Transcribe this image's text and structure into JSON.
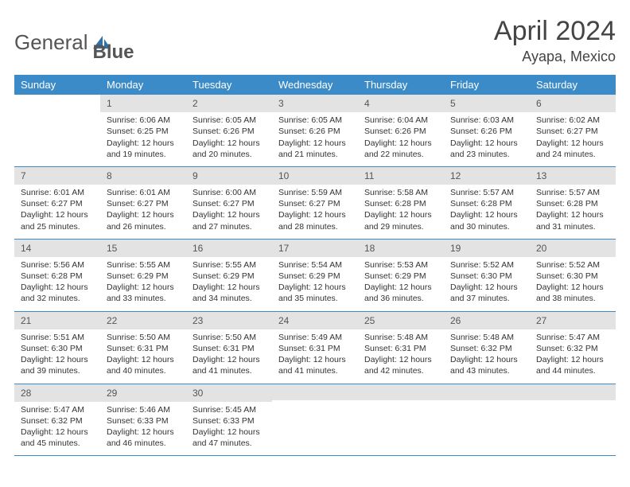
{
  "logo": {
    "part1": "General",
    "part2": "Blue"
  },
  "title": "April 2024",
  "location": "Ayapa, Mexico",
  "header_color": "#3b8bc8",
  "daynum_bg": "#e3e3e3",
  "border_color": "#3b8bc8",
  "weekdays": [
    "Sunday",
    "Monday",
    "Tuesday",
    "Wednesday",
    "Thursday",
    "Friday",
    "Saturday"
  ],
  "weeks": [
    [
      null,
      {
        "n": "1",
        "sr": "Sunrise: 6:06 AM",
        "ss": "Sunset: 6:25 PM",
        "d1": "Daylight: 12 hours",
        "d2": "and 19 minutes."
      },
      {
        "n": "2",
        "sr": "Sunrise: 6:05 AM",
        "ss": "Sunset: 6:26 PM",
        "d1": "Daylight: 12 hours",
        "d2": "and 20 minutes."
      },
      {
        "n": "3",
        "sr": "Sunrise: 6:05 AM",
        "ss": "Sunset: 6:26 PM",
        "d1": "Daylight: 12 hours",
        "d2": "and 21 minutes."
      },
      {
        "n": "4",
        "sr": "Sunrise: 6:04 AM",
        "ss": "Sunset: 6:26 PM",
        "d1": "Daylight: 12 hours",
        "d2": "and 22 minutes."
      },
      {
        "n": "5",
        "sr": "Sunrise: 6:03 AM",
        "ss": "Sunset: 6:26 PM",
        "d1": "Daylight: 12 hours",
        "d2": "and 23 minutes."
      },
      {
        "n": "6",
        "sr": "Sunrise: 6:02 AM",
        "ss": "Sunset: 6:27 PM",
        "d1": "Daylight: 12 hours",
        "d2": "and 24 minutes."
      }
    ],
    [
      {
        "n": "7",
        "sr": "Sunrise: 6:01 AM",
        "ss": "Sunset: 6:27 PM",
        "d1": "Daylight: 12 hours",
        "d2": "and 25 minutes."
      },
      {
        "n": "8",
        "sr": "Sunrise: 6:01 AM",
        "ss": "Sunset: 6:27 PM",
        "d1": "Daylight: 12 hours",
        "d2": "and 26 minutes."
      },
      {
        "n": "9",
        "sr": "Sunrise: 6:00 AM",
        "ss": "Sunset: 6:27 PM",
        "d1": "Daylight: 12 hours",
        "d2": "and 27 minutes."
      },
      {
        "n": "10",
        "sr": "Sunrise: 5:59 AM",
        "ss": "Sunset: 6:27 PM",
        "d1": "Daylight: 12 hours",
        "d2": "and 28 minutes."
      },
      {
        "n": "11",
        "sr": "Sunrise: 5:58 AM",
        "ss": "Sunset: 6:28 PM",
        "d1": "Daylight: 12 hours",
        "d2": "and 29 minutes."
      },
      {
        "n": "12",
        "sr": "Sunrise: 5:57 AM",
        "ss": "Sunset: 6:28 PM",
        "d1": "Daylight: 12 hours",
        "d2": "and 30 minutes."
      },
      {
        "n": "13",
        "sr": "Sunrise: 5:57 AM",
        "ss": "Sunset: 6:28 PM",
        "d1": "Daylight: 12 hours",
        "d2": "and 31 minutes."
      }
    ],
    [
      {
        "n": "14",
        "sr": "Sunrise: 5:56 AM",
        "ss": "Sunset: 6:28 PM",
        "d1": "Daylight: 12 hours",
        "d2": "and 32 minutes."
      },
      {
        "n": "15",
        "sr": "Sunrise: 5:55 AM",
        "ss": "Sunset: 6:29 PM",
        "d1": "Daylight: 12 hours",
        "d2": "and 33 minutes."
      },
      {
        "n": "16",
        "sr": "Sunrise: 5:55 AM",
        "ss": "Sunset: 6:29 PM",
        "d1": "Daylight: 12 hours",
        "d2": "and 34 minutes."
      },
      {
        "n": "17",
        "sr": "Sunrise: 5:54 AM",
        "ss": "Sunset: 6:29 PM",
        "d1": "Daylight: 12 hours",
        "d2": "and 35 minutes."
      },
      {
        "n": "18",
        "sr": "Sunrise: 5:53 AM",
        "ss": "Sunset: 6:29 PM",
        "d1": "Daylight: 12 hours",
        "d2": "and 36 minutes."
      },
      {
        "n": "19",
        "sr": "Sunrise: 5:52 AM",
        "ss": "Sunset: 6:30 PM",
        "d1": "Daylight: 12 hours",
        "d2": "and 37 minutes."
      },
      {
        "n": "20",
        "sr": "Sunrise: 5:52 AM",
        "ss": "Sunset: 6:30 PM",
        "d1": "Daylight: 12 hours",
        "d2": "and 38 minutes."
      }
    ],
    [
      {
        "n": "21",
        "sr": "Sunrise: 5:51 AM",
        "ss": "Sunset: 6:30 PM",
        "d1": "Daylight: 12 hours",
        "d2": "and 39 minutes."
      },
      {
        "n": "22",
        "sr": "Sunrise: 5:50 AM",
        "ss": "Sunset: 6:31 PM",
        "d1": "Daylight: 12 hours",
        "d2": "and 40 minutes."
      },
      {
        "n": "23",
        "sr": "Sunrise: 5:50 AM",
        "ss": "Sunset: 6:31 PM",
        "d1": "Daylight: 12 hours",
        "d2": "and 41 minutes."
      },
      {
        "n": "24",
        "sr": "Sunrise: 5:49 AM",
        "ss": "Sunset: 6:31 PM",
        "d1": "Daylight: 12 hours",
        "d2": "and 41 minutes."
      },
      {
        "n": "25",
        "sr": "Sunrise: 5:48 AM",
        "ss": "Sunset: 6:31 PM",
        "d1": "Daylight: 12 hours",
        "d2": "and 42 minutes."
      },
      {
        "n": "26",
        "sr": "Sunrise: 5:48 AM",
        "ss": "Sunset: 6:32 PM",
        "d1": "Daylight: 12 hours",
        "d2": "and 43 minutes."
      },
      {
        "n": "27",
        "sr": "Sunrise: 5:47 AM",
        "ss": "Sunset: 6:32 PM",
        "d1": "Daylight: 12 hours",
        "d2": "and 44 minutes."
      }
    ],
    [
      {
        "n": "28",
        "sr": "Sunrise: 5:47 AM",
        "ss": "Sunset: 6:32 PM",
        "d1": "Daylight: 12 hours",
        "d2": "and 45 minutes."
      },
      {
        "n": "29",
        "sr": "Sunrise: 5:46 AM",
        "ss": "Sunset: 6:33 PM",
        "d1": "Daylight: 12 hours",
        "d2": "and 46 minutes."
      },
      {
        "n": "30",
        "sr": "Sunrise: 5:45 AM",
        "ss": "Sunset: 6:33 PM",
        "d1": "Daylight: 12 hours",
        "d2": "and 47 minutes."
      },
      null,
      null,
      null,
      null
    ]
  ]
}
